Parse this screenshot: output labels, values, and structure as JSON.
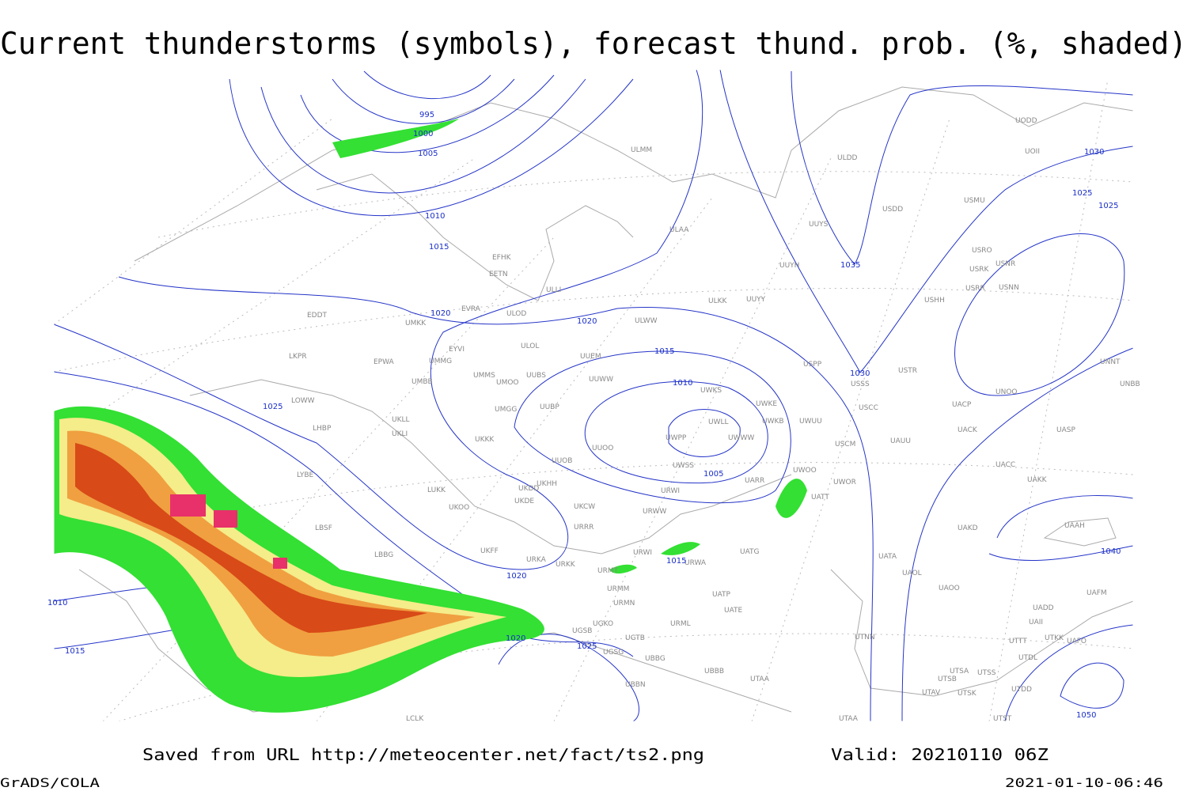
{
  "header": {
    "title": "Current thunderstorms (symbols), forecast thund. prob. (%, shaded)"
  },
  "footer": {
    "source": "Saved from URL http://meteocenter.net/fact/ts2.png",
    "valid": "Valid: 20210110 06Z",
    "software": "GrADS/COLA",
    "timestamp": "2021-01-10-06:46"
  },
  "isobar_labels": [
    995,
    1000,
    1005,
    1010,
    1015,
    1020,
    1020,
    1015,
    1010,
    1005,
    1025,
    1020,
    1020,
    1025,
    1015,
    1015,
    1010,
    1030,
    1035,
    1030,
    1025,
    1025,
    1040,
    1050
  ],
  "stations": [
    "ULMM",
    "ULDD",
    "UODD",
    "UOII",
    "USMU",
    "USDD",
    "UUYS",
    "ULAA",
    "EFHK",
    "EETN",
    "USRO",
    "USRK",
    "USNR",
    "USRR",
    "USNN",
    "UUYH",
    "ULLI",
    "USHH",
    "EVRA",
    "ULOD",
    "ULKK",
    "UUYY",
    "ULWW",
    "EDDT",
    "UMKK",
    "ULOL",
    "EYVI",
    "UUEM",
    "LKPR",
    "EPWA",
    "UMMG",
    "UMMS",
    "UMOO",
    "UUBS",
    "UUWW",
    "USPP",
    "USTR",
    "USSS",
    "UMBB",
    "UNNT",
    "UNBB",
    "UWKS",
    "UNOO",
    "UWKE",
    "UUBP",
    "UMGG",
    "USCC",
    "UACP",
    "LOWW",
    "UKLL",
    "UWLL",
    "UWKB",
    "UWUU",
    "UKLI",
    "UACK",
    "UASP",
    "UUOO",
    "UWPP",
    "UWWW",
    "UKKK",
    "USCM",
    "UAUU",
    "LHBP",
    "UUOB",
    "LYBE",
    "UWSS",
    "UACC",
    "UKHH",
    "UKDD",
    "UKOO",
    "LUKK",
    "UKDE",
    "UATT",
    "UWOO",
    "UWOR",
    "UAKK",
    "UARR",
    "URWI",
    "UKCW",
    "URWW",
    "LBSF",
    "URRR",
    "UAKD",
    "UAAH",
    "UKFF",
    "URKA",
    "URKK",
    "URWI",
    "URWA",
    "UATG",
    "UATA",
    "LBBG",
    "URMT",
    "UAOL",
    "URMM",
    "UAOO",
    "UATP",
    "UAFM",
    "URMN",
    "UATE",
    "UADD",
    "UGKO",
    "URML",
    "UAII",
    "UGSB",
    "UGTB",
    "UTNN",
    "UTTT",
    "UTKK",
    "UAFO",
    "UGSG",
    "UBBG",
    "UTDL",
    "UBBB",
    "UTSA",
    "UTSS",
    "UTSB",
    "UTAA",
    "UBBN",
    "UTDD",
    "UTAV",
    "UTSK",
    "LCLK",
    "UTAA",
    "UTST"
  ]
}
